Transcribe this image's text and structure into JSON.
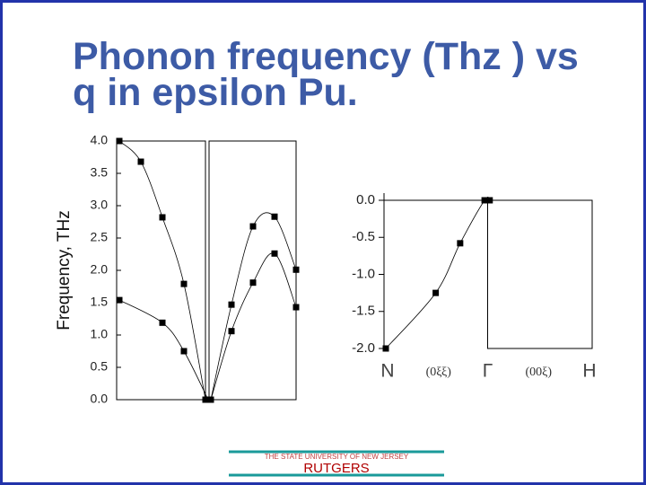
{
  "title": "Phonon frequency (Thz ) vs q in epsilon Pu.",
  "chart_data": [
    {
      "type": "line",
      "ylabel": "Frequency, THz",
      "xlim": [
        0,
        2
      ],
      "ylim": [
        0,
        4
      ],
      "yticks": [
        {
          "value": 0,
          "label": "0.0"
        },
        0.5,
        {
          "value": 1,
          "label": "1.0"
        },
        1.5,
        {
          "value": 2,
          "label": "2.0"
        },
        2.5,
        {
          "value": 3,
          "label": "3.0"
        },
        3.5,
        {
          "value": 4,
          "label": "4.0"
        }
      ],
      "series": [
        {
          "color": "#000000",
          "x": [
            0.03,
            0.27,
            0.51,
            0.75,
            0.99
          ],
          "values": [
            4.0,
            3.68,
            2.82,
            1.79,
            0.0
          ]
        },
        {
          "color": "#000000",
          "x": [
            0.03,
            0.51,
            0.75,
            1.02
          ],
          "values": [
            1.54,
            1.19,
            0.75,
            0.0
          ]
        },
        {
          "color": "#000000",
          "x": [
            1.05,
            1.28,
            1.52,
            1.76,
            2.0
          ],
          "values": [
            0.0,
            1.47,
            2.68,
            2.83,
            2.01
          ]
        },
        {
          "color": "#000000",
          "x": [
            1.05,
            1.28,
            1.52,
            1.76,
            2.0
          ],
          "values": [
            0.0,
            1.06,
            1.81,
            2.26,
            1.43
          ]
        }
      ]
    },
    {
      "type": "line",
      "xlim": [
        0,
        2
      ],
      "ylim": [
        -2,
        0
      ],
      "xticks": [
        {
          "value": 0,
          "label": "N"
        },
        {
          "value": 1,
          "label": "Γ"
        },
        {
          "value": 2,
          "label": "H"
        }
      ],
      "segment_labels": [
        "(0ξξ)",
        "(00ξ)"
      ],
      "yticks": [
        {
          "value": 0,
          "label": "0.0"
        },
        -0.5,
        {
          "value": -1,
          "label": "-1.0"
        },
        -1.5,
        {
          "value": -2,
          "label": "-2.0"
        }
      ],
      "series": [
        {
          "color": "#000000",
          "x": [
            0.0,
            0.49,
            0.73,
            0.97,
            1.02
          ],
          "values": [
            -2.0,
            -1.25,
            -0.58,
            0.0,
            0.0
          ]
        }
      ]
    }
  ],
  "footer": {
    "university": "THE STATE UNIVERSITY OF NEW JERSEY",
    "name": "RUTGERS"
  }
}
